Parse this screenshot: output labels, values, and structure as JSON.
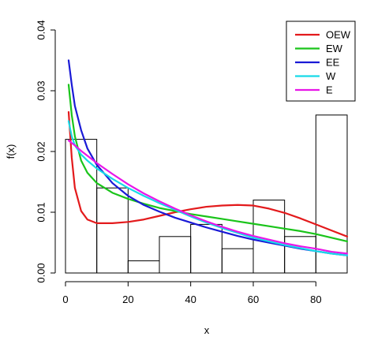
{
  "chart_data": {
    "type": "histogram_with_density_lines",
    "title": "",
    "xlabel": "x",
    "ylabel": "f(x)",
    "xlim": [
      0,
      90
    ],
    "ylim": [
      0,
      0.04
    ],
    "x_ticks": [
      0,
      20,
      40,
      60,
      80
    ],
    "y_ticks": [
      0.0,
      0.01,
      0.02,
      0.03,
      0.04
    ],
    "y_tick_labels": [
      "0.00",
      "0.01",
      "0.02",
      "0.03",
      "0.04"
    ],
    "grid": false,
    "legend_position": "top-right",
    "histogram": {
      "bins": [
        {
          "from": 0,
          "to": 10,
          "density": 0.022
        },
        {
          "from": 10,
          "to": 20,
          "density": 0.014
        },
        {
          "from": 20,
          "to": 30,
          "density": 0.002
        },
        {
          "from": 30,
          "to": 40,
          "density": 0.006
        },
        {
          "from": 40,
          "to": 50,
          "density": 0.008
        },
        {
          "from": 50,
          "to": 60,
          "density": 0.004
        },
        {
          "from": 60,
          "to": 70,
          "density": 0.012
        },
        {
          "from": 70,
          "to": 80,
          "density": 0.006
        },
        {
          "from": 80,
          "to": 90,
          "density": 0.026
        }
      ]
    },
    "series": [
      {
        "name": "OEW",
        "color": "#e31a1c",
        "x": [
          1,
          2,
          3,
          5,
          7,
          10,
          15,
          20,
          25,
          30,
          35,
          40,
          45,
          50,
          55,
          60,
          65,
          70,
          75,
          80,
          85,
          90
        ],
        "y": [
          0.0265,
          0.019,
          0.014,
          0.0102,
          0.0088,
          0.0082,
          0.0082,
          0.0084,
          0.0088,
          0.0094,
          0.01,
          0.0105,
          0.0109,
          0.0111,
          0.0112,
          0.0111,
          0.0106,
          0.0099,
          0.009,
          0.008,
          0.007,
          0.006
        ]
      },
      {
        "name": "EW",
        "color": "#1ac41a",
        "x": [
          1,
          2,
          3,
          5,
          7,
          10,
          15,
          20,
          25,
          30,
          35,
          40,
          45,
          50,
          55,
          60,
          65,
          70,
          75,
          80,
          85,
          90
        ],
        "y": [
          0.031,
          0.026,
          0.0225,
          0.0185,
          0.0165,
          0.0148,
          0.0132,
          0.0122,
          0.0114,
          0.0107,
          0.0102,
          0.0097,
          0.0093,
          0.0089,
          0.0085,
          0.0081,
          0.0077,
          0.0073,
          0.0069,
          0.0064,
          0.0058,
          0.0052
        ]
      },
      {
        "name": "EE",
        "color": "#1a1ad6",
        "x": [
          1,
          2,
          3,
          5,
          7,
          10,
          15,
          20,
          25,
          30,
          35,
          40,
          45,
          50,
          55,
          60,
          65,
          70,
          75,
          80,
          85,
          90
        ],
        "y": [
          0.035,
          0.031,
          0.0275,
          0.0235,
          0.0205,
          0.0178,
          0.0148,
          0.0127,
          0.0112,
          0.0101,
          0.0091,
          0.0083,
          0.0075,
          0.0068,
          0.0061,
          0.0055,
          0.005,
          0.0045,
          0.004,
          0.0036,
          0.0032,
          0.0029
        ]
      },
      {
        "name": "W",
        "color": "#17d9e8",
        "x": [
          1,
          2,
          3,
          5,
          7,
          10,
          15,
          20,
          25,
          30,
          35,
          40,
          45,
          50,
          55,
          60,
          65,
          70,
          75,
          80,
          85,
          90
        ],
        "y": [
          0.025,
          0.0225,
          0.021,
          0.0195,
          0.0185,
          0.0172,
          0.0155,
          0.014,
          0.0127,
          0.0115,
          0.0104,
          0.0093,
          0.0083,
          0.0074,
          0.0066,
          0.0058,
          0.0052,
          0.0046,
          0.0041,
          0.0036,
          0.0032,
          0.0029
        ]
      },
      {
        "name": "E",
        "color": "#e816e8",
        "x": [
          1,
          2,
          3,
          5,
          7,
          10,
          15,
          20,
          25,
          30,
          35,
          40,
          45,
          50,
          55,
          60,
          65,
          70,
          75,
          80,
          85,
          90
        ],
        "y": [
          0.0218,
          0.0214,
          0.021,
          0.0201,
          0.0193,
          0.0181,
          0.0163,
          0.0146,
          0.0131,
          0.0118,
          0.0106,
          0.0095,
          0.0085,
          0.0076,
          0.0068,
          0.0061,
          0.0055,
          0.0049,
          0.0044,
          0.004,
          0.0035,
          0.0032
        ]
      }
    ]
  }
}
